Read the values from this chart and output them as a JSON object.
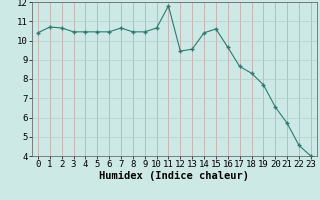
{
  "x": [
    0,
    1,
    2,
    3,
    4,
    5,
    6,
    7,
    8,
    9,
    10,
    11,
    12,
    13,
    14,
    15,
    16,
    17,
    18,
    19,
    20,
    21,
    22,
    23
  ],
  "y": [
    10.4,
    10.7,
    10.65,
    10.45,
    10.45,
    10.45,
    10.45,
    10.65,
    10.45,
    10.45,
    10.65,
    11.8,
    9.45,
    9.55,
    10.4,
    10.6,
    9.65,
    8.65,
    8.3,
    7.7,
    6.55,
    5.7,
    4.55,
    4.0
  ],
  "xlabel": "Humidex (Indice chaleur)",
  "ylim": [
    4,
    12
  ],
  "xlim": [
    -0.5,
    23.5
  ],
  "yticks": [
    4,
    5,
    6,
    7,
    8,
    9,
    10,
    11,
    12
  ],
  "xticks": [
    0,
    1,
    2,
    3,
    4,
    5,
    6,
    7,
    8,
    9,
    10,
    11,
    12,
    13,
    14,
    15,
    16,
    17,
    18,
    19,
    20,
    21,
    22,
    23
  ],
  "line_color": "#2d7a6e",
  "marker_color": "#2d7a6e",
  "bg_color": "#cce9e5",
  "grid_color": "#b8d0cc",
  "xlabel_fontsize": 7.5,
  "tick_fontsize": 6.5
}
